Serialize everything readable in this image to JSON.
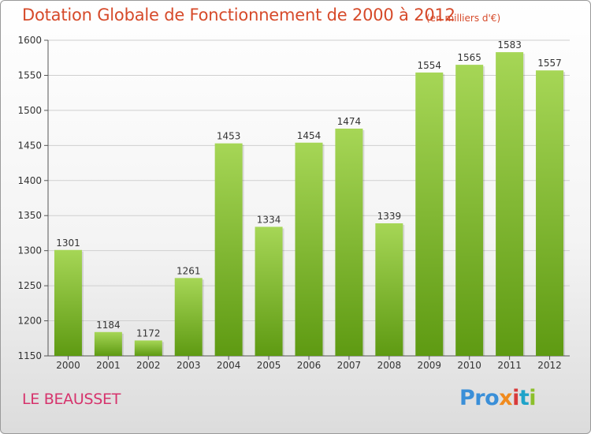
{
  "title": "Dotation Globale de Fonctionnement de 2000 à 2012",
  "subtitle": "(en milliers d'€)",
  "commune": "LE BEAUSSET",
  "logo": [
    "Pro",
    "x",
    "i",
    "t",
    "i"
  ],
  "colors": {
    "title": "#d64a2a",
    "commune": "#d6336c",
    "bar_top": "#a6d656",
    "bar_bottom": "#5e9a12",
    "grid": "#cfcfcf"
  },
  "chart_data": {
    "type": "bar",
    "title": "Dotation Globale de Fonctionnement de 2000 à 2012",
    "subtitle": "(en milliers d'€)",
    "categories": [
      "2000",
      "2001",
      "2002",
      "2003",
      "2004",
      "2005",
      "2006",
      "2007",
      "2008",
      "2009",
      "2010",
      "2011",
      "2012"
    ],
    "values": [
      1301,
      1184,
      1172,
      1261,
      1453,
      1334,
      1454,
      1474,
      1339,
      1554,
      1565,
      1583,
      1557
    ],
    "ylim": [
      1150,
      1600
    ],
    "yticks": [
      1150,
      1200,
      1250,
      1300,
      1350,
      1400,
      1450,
      1500,
      1550,
      1600
    ],
    "grid": true,
    "data_labels": true,
    "xlabel": "",
    "ylabel": ""
  }
}
